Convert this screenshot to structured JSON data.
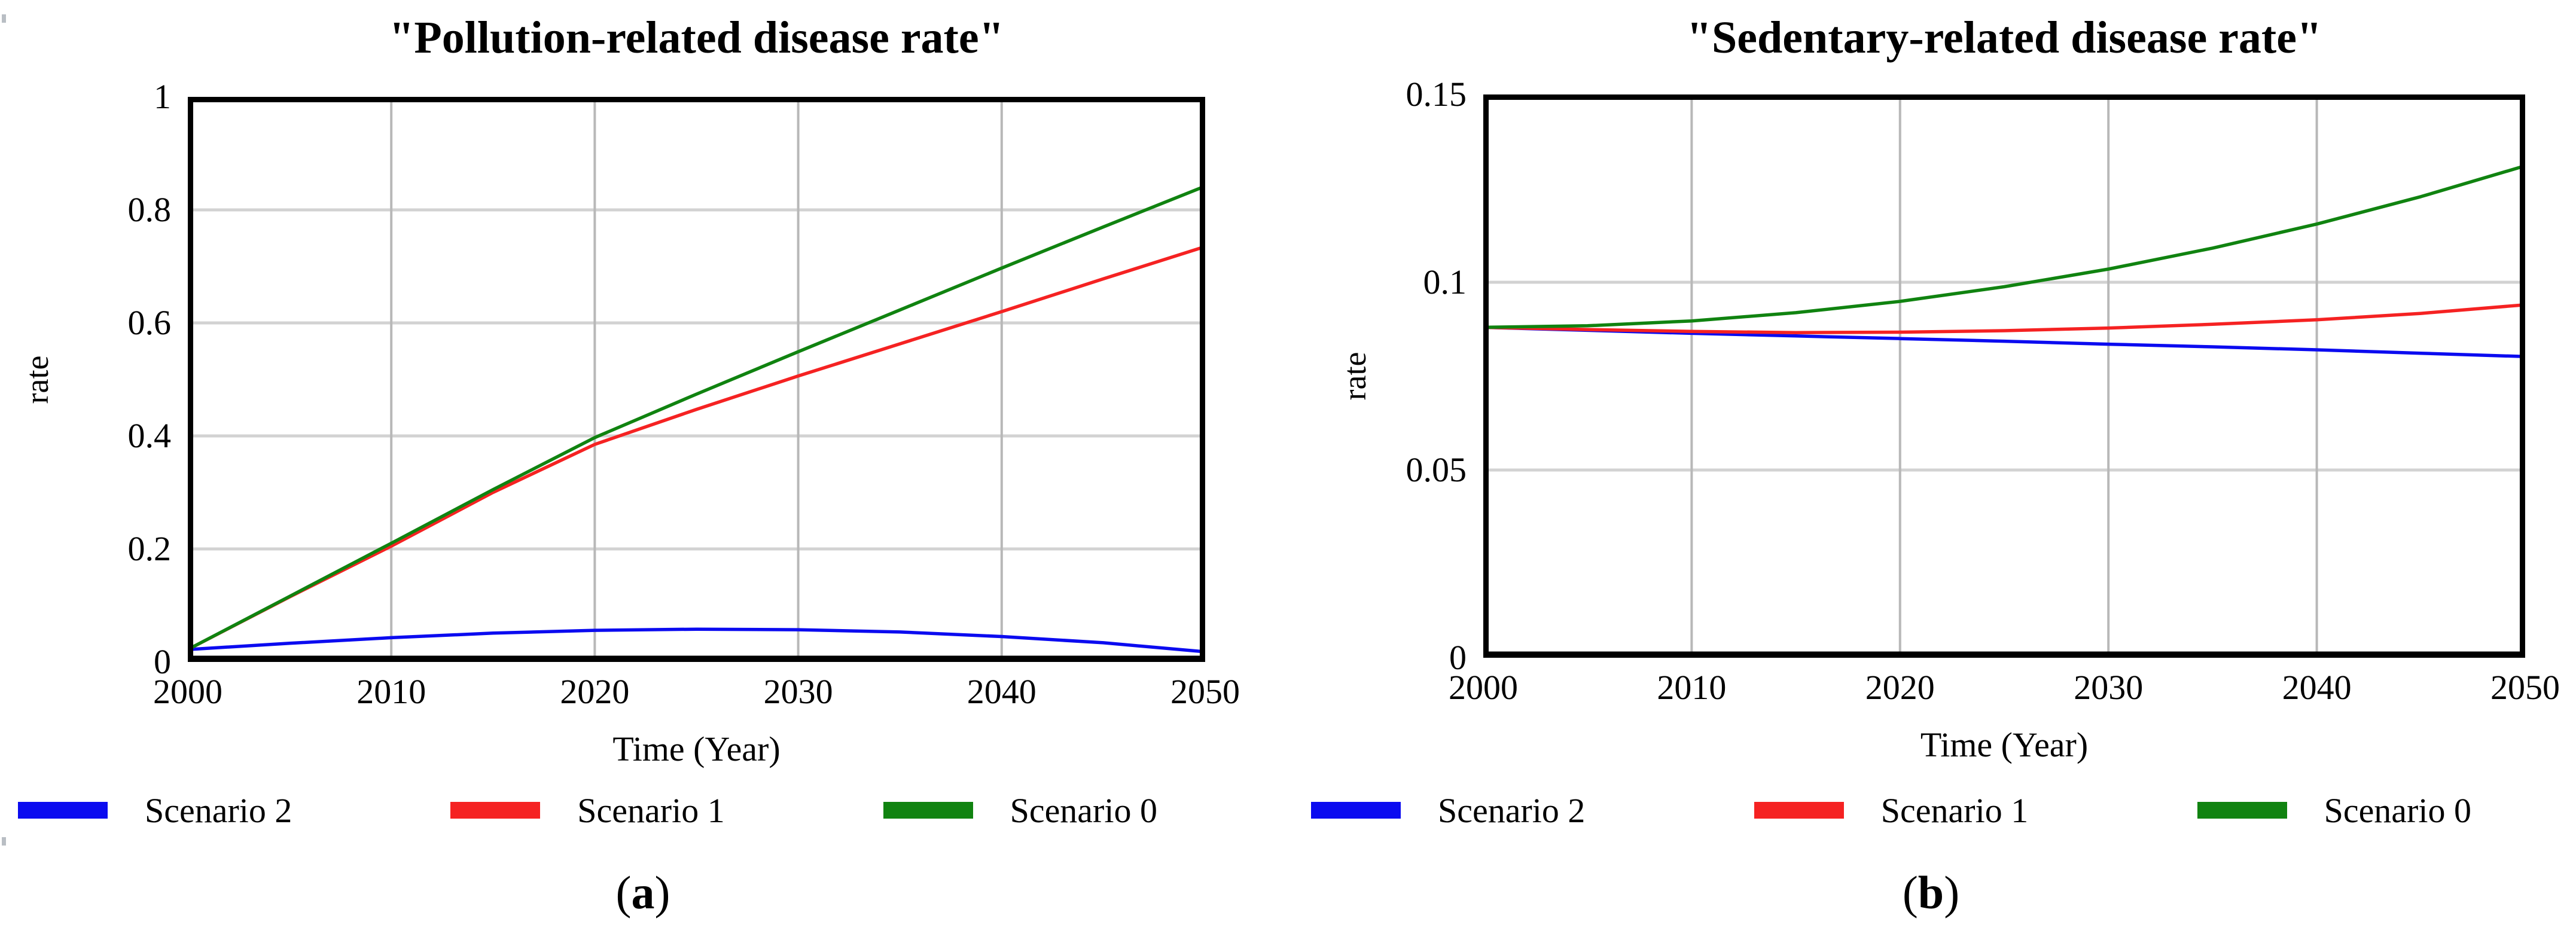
{
  "figure": {
    "panels": [
      {
        "title": "\"Pollution-related disease rate\"",
        "ylabel": "rate",
        "xlabel": "Time (Year)",
        "paren_open": "(",
        "panel_letter": "a",
        "paren_close": ")"
      },
      {
        "title": "\"Sedentary-related disease rate\"",
        "ylabel": "rate",
        "xlabel": "Time (Year)",
        "paren_open": "(",
        "panel_letter": "b",
        "paren_close": ")"
      }
    ]
  },
  "chart_data": [
    {
      "type": "line",
      "title": "\"Pollution-related disease rate\"",
      "xlabel": "Time (Year)",
      "ylabel": "rate",
      "xlim": [
        2000,
        2050
      ],
      "ylim": [
        0,
        1
      ],
      "x_ticks": [
        "2000",
        "2010",
        "2020",
        "2030",
        "2040",
        "2050"
      ],
      "y_ticks": [
        "0",
        "0.2",
        "0.4",
        "0.6",
        "0.8",
        "1"
      ],
      "grid": true,
      "legend_position": "bottom",
      "x": [
        2000,
        2005,
        2010,
        2015,
        2020,
        2025,
        2030,
        2035,
        2040,
        2045,
        2050
      ],
      "series": [
        {
          "name": "Scenario 2",
          "color": "#0b0bf0",
          "values": [
            0.022,
            0.033,
            0.043,
            0.051,
            0.056,
            0.058,
            0.057,
            0.053,
            0.045,
            0.034,
            0.018
          ]
        },
        {
          "name": "Scenario 1",
          "color": "#f52222",
          "values": [
            0.022,
            0.115,
            0.205,
            0.3,
            0.385,
            0.447,
            0.506,
            0.563,
            0.62,
            0.678,
            0.735
          ]
        },
        {
          "name": "Scenario 0",
          "color": "#108310",
          "values": [
            0.022,
            0.116,
            0.21,
            0.305,
            0.397,
            0.474,
            0.549,
            0.623,
            0.697,
            0.77,
            0.842
          ]
        }
      ]
    },
    {
      "type": "line",
      "title": "\"Sedentary-related disease rate\"",
      "xlabel": "Time (Year)",
      "ylabel": "rate",
      "xlim": [
        2000,
        2050
      ],
      "ylim": [
        0,
        0.15
      ],
      "x_ticks": [
        "2000",
        "2010",
        "2020",
        "2030",
        "2040",
        "2050"
      ],
      "y_ticks": [
        "0",
        "0.05",
        "0.1",
        "0.15"
      ],
      "grid": true,
      "legend_position": "bottom",
      "x": [
        2000,
        2005,
        2010,
        2015,
        2020,
        2025,
        2030,
        2035,
        2040,
        2045,
        2050
      ],
      "series": [
        {
          "name": "Scenario 2",
          "color": "#0b0bf0",
          "values": [
            0.088,
            0.0872,
            0.0864,
            0.0857,
            0.085,
            0.0843,
            0.0835,
            0.0828,
            0.082,
            0.0811,
            0.0802
          ]
        },
        {
          "name": "Scenario 1",
          "color": "#f52222",
          "values": [
            0.088,
            0.0874,
            0.0869,
            0.0866,
            0.0867,
            0.0871,
            0.0878,
            0.0888,
            0.09,
            0.0917,
            0.094
          ]
        },
        {
          "name": "Scenario 0",
          "color": "#108310",
          "values": [
            0.088,
            0.0884,
            0.0897,
            0.0919,
            0.0949,
            0.0988,
            0.1035,
            0.1091,
            0.1155,
            0.1228,
            0.131
          ]
        }
      ]
    }
  ]
}
